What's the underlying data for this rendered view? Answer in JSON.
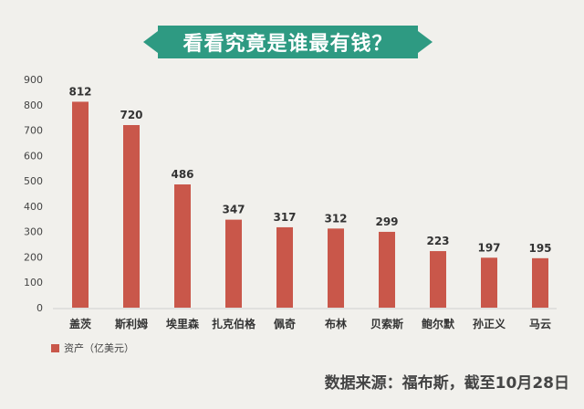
{
  "title": "看看究竟是谁最有钱？",
  "source": "数据来源：福布斯，截至10月28日",
  "colors": {
    "bar": "#c9574a",
    "banner": "#2e9a82"
  },
  "chart_data": {
    "type": "bar",
    "title": "看看究竟是谁最有钱？",
    "categories": [
      "盖茨",
      "斯利姆",
      "埃里森",
      "扎克伯格",
      "佩奇",
      "布林",
      "贝索斯",
      "鲍尔默",
      "孙正义",
      "马云"
    ],
    "series": [
      {
        "name": "资产（亿美元）",
        "values": [
          812,
          720,
          486,
          347,
          317,
          312,
          299,
          223,
          197,
          195
        ]
      }
    ],
    "data_labels": [
      "812",
      "720",
      "486",
      "347",
      "317",
      "312",
      "299",
      "223",
      "197",
      "195"
    ],
    "yticks": [
      0,
      100,
      200,
      300,
      400,
      500,
      600,
      700,
      800,
      900
    ],
    "ylim": [
      0,
      900
    ],
    "xlabel": "",
    "ylabel": "",
    "grid": false,
    "legend_position": "bottom-left"
  }
}
